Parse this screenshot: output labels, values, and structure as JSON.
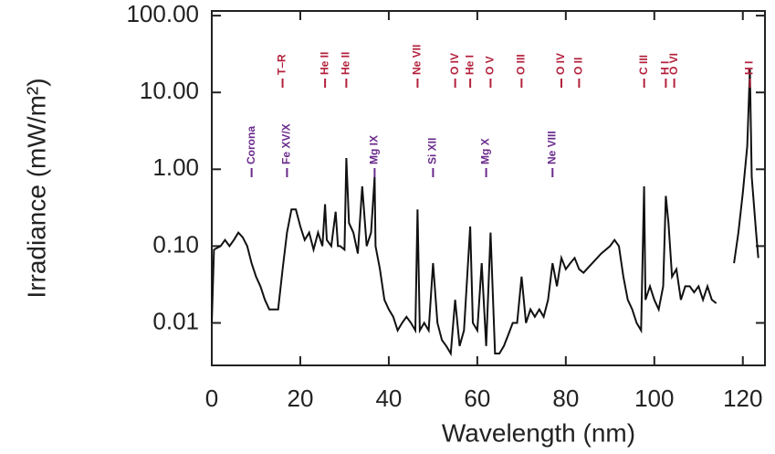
{
  "chart_data": {
    "type": "line",
    "xlabel": "Wavelength (nm)",
    "ylabel": "Irradiance (mW/m²)",
    "log_y": true,
    "color": "#111111",
    "xlim": [
      0,
      125
    ],
    "xticks": [
      0,
      20,
      40,
      60,
      80,
      100,
      120
    ],
    "ylim": [
      0.0028,
      115
    ],
    "yticks": [
      {
        "value": 100,
        "label": "100.00"
      },
      {
        "value": 10,
        "label": "10.00"
      },
      {
        "value": 1,
        "label": "1.00"
      },
      {
        "value": 0.1,
        "label": "0.10"
      },
      {
        "value": 0.01,
        "label": "0.01"
      }
    ],
    "x": [
      0,
      0.5,
      2,
      3,
      4,
      5,
      6,
      7,
      8,
      9,
      10,
      11,
      12,
      13,
      14,
      15,
      16,
      17,
      18,
      19,
      20,
      21,
      22,
      23,
      24,
      25,
      25.6,
      26,
      27,
      28,
      28.5,
      29,
      30,
      30.4,
      31,
      32,
      33,
      34,
      35,
      36,
      36.8,
      37,
      38,
      39,
      40,
      41,
      42,
      43,
      44,
      45,
      46,
      46.5,
      47,
      48,
      49,
      50,
      51,
      52,
      53,
      54,
      55,
      56,
      57,
      58.4,
      59,
      60,
      61,
      62,
      63,
      64,
      65,
      66,
      67,
      68,
      69,
      70,
      71,
      72,
      73,
      74,
      75,
      76,
      77,
      78,
      79,
      80,
      81,
      82,
      83,
      84,
      86,
      88,
      90,
      91,
      92,
      93,
      94,
      95,
      96,
      97,
      97.7,
      98,
      99,
      100,
      101,
      102,
      102.6,
      103.2,
      104,
      105,
      106,
      107,
      108,
      109,
      110,
      111,
      112,
      113,
      114,
      116,
      118,
      119,
      120,
      121,
      121.6,
      122,
      123,
      123.5
    ],
    "values": [
      0.01,
      0.09,
      0.1,
      0.12,
      0.1,
      0.12,
      0.15,
      0.13,
      0.1,
      0.06,
      0.04,
      0.03,
      0.02,
      0.015,
      0.015,
      0.015,
      0.05,
      0.15,
      0.3,
      0.3,
      0.18,
      0.12,
      0.15,
      0.09,
      0.15,
      0.1,
      0.35,
      0.12,
      0.1,
      0.28,
      0.1,
      0.1,
      0.09,
      1.4,
      0.2,
      0.15,
      0.08,
      0.6,
      0.1,
      0.15,
      0.8,
      0.1,
      0.05,
      0.02,
      0.015,
      0.012,
      0.008,
      0.01,
      0.012,
      0.01,
      0.008,
      0.3,
      0.008,
      0.01,
      0.008,
      0.06,
      0.01,
      0.006,
      0.005,
      0.004,
      0.02,
      0.005,
      0.008,
      0.18,
      0.01,
      0.008,
      0.06,
      0.005,
      0.15,
      0.004,
      0.004,
      0.005,
      0.007,
      0.01,
      0.01,
      0.04,
      0.01,
      0.015,
      0.012,
      0.015,
      0.012,
      0.02,
      0.06,
      0.03,
      0.07,
      0.05,
      0.06,
      0.07,
      0.05,
      0.045,
      0.06,
      0.08,
      0.1,
      0.12,
      0.1,
      0.04,
      0.02,
      0.015,
      0.01,
      0.008,
      0.6,
      0.02,
      0.03,
      0.02,
      0.015,
      0.03,
      0.45,
      0.2,
      0.04,
      0.05,
      0.02,
      0.03,
      0.03,
      0.025,
      0.03,
      0.02,
      0.03,
      0.02,
      0.018,
      null,
      0.06,
      0.15,
      0.5,
      2,
      20,
      0.8,
      0.15,
      0.07
    ],
    "annotation_groups": [
      {
        "color": "#b3203c",
        "labels": [
          {
            "text": "T–R",
            "x": 16
          },
          {
            "text": "He II",
            "x": 25.6
          },
          {
            "text": "He II",
            "x": 30.4
          },
          {
            "text": "Ne VII",
            "x": 46.5
          },
          {
            "text": "O IV",
            "x": 55
          },
          {
            "text": "He I",
            "x": 58.4
          },
          {
            "text": "O V",
            "x": 63
          },
          {
            "text": "O III",
            "x": 70
          },
          {
            "text": "O IV",
            "x": 79
          },
          {
            "text": "O II",
            "x": 83
          },
          {
            "text": "C III",
            "x": 97.7
          },
          {
            "text": "H I",
            "x": 102.6
          },
          {
            "text": "O VI",
            "x": 104.5
          },
          {
            "text": "H I",
            "x": 121.6
          }
        ]
      },
      {
        "color": "#6a2a8c",
        "labels": [
          {
            "text": "Corona",
            "x": 9
          },
          {
            "text": "Fe XV/X",
            "x": 17
          },
          {
            "text": "Mg IX",
            "x": 36.8
          },
          {
            "text": "Si XII",
            "x": 50
          },
          {
            "text": "Mg X",
            "x": 62
          },
          {
            "text": "Ne VIII",
            "x": 77
          }
        ]
      }
    ]
  }
}
